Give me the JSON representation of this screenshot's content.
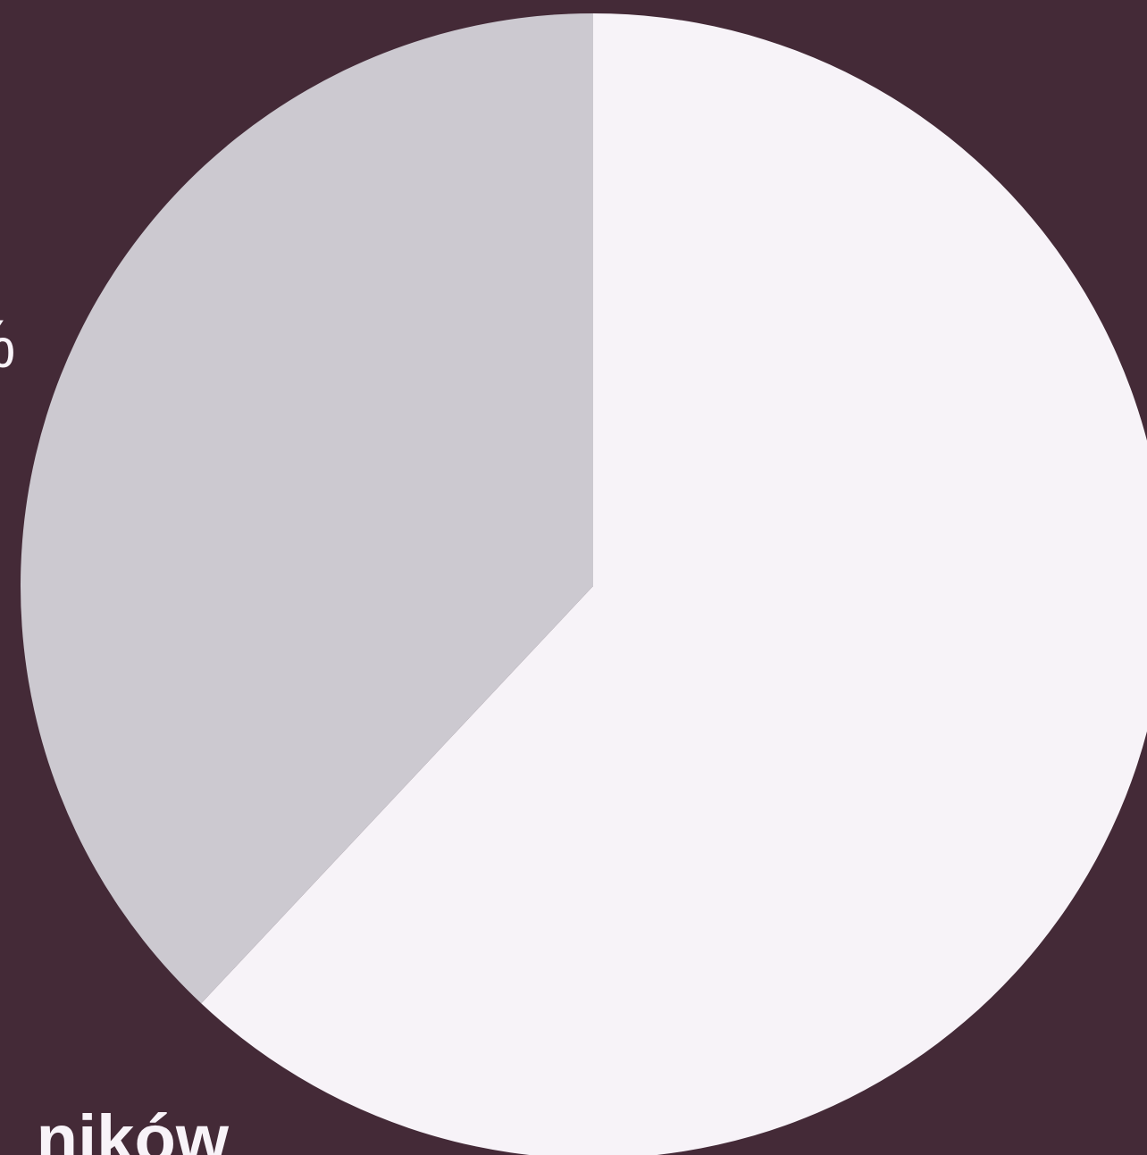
{
  "chart_data": {
    "type": "pie",
    "title": "",
    "slices": [
      {
        "name": "",
        "value": 62,
        "color": "#f7f3f8"
      },
      {
        "name": "",
        "value": 38,
        "color": "#ccc9d0"
      }
    ],
    "start_angle_deg": 0,
    "direction": "clockwise",
    "legend": "none"
  },
  "labels": {
    "percent_fragment": "%",
    "category_fragment": "ników"
  },
  "background_color": "#442a37"
}
